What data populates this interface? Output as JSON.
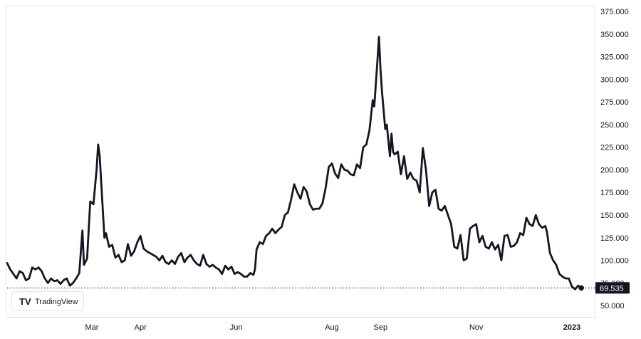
{
  "chart_data": {
    "type": "line",
    "title": "",
    "xlabel": "",
    "ylabel": "",
    "ylim": [
      37.5,
      375
    ],
    "y_ticks": [
      "375.000",
      "350.000",
      "325.000",
      "300.000",
      "275.000",
      "250.000",
      "225.000",
      "200.000",
      "175.000",
      "150.000",
      "125.000",
      "100.000",
      "75.000",
      "50.000"
    ],
    "x_tick_labels": [
      {
        "label": "Mar",
        "date": "2022-03-01"
      },
      {
        "label": "Apr",
        "date": "2022-04-01"
      },
      {
        "label": "Jun",
        "date": "2022-06-01"
      },
      {
        "label": "Aug",
        "date": "2022-08-01"
      },
      {
        "label": "Sep",
        "date": "2022-09-01"
      },
      {
        "label": "Nov",
        "date": "2022-11-01"
      },
      {
        "label": "2023",
        "date": "2023-01-01"
      }
    ],
    "grid": false,
    "last_price_label": "69.535",
    "last_value": 69.535,
    "series": [
      {
        "color": "#131722",
        "points": [
          [
            "2022-01-06",
            97
          ],
          [
            "2022-01-08",
            90
          ],
          [
            "2022-01-10",
            85
          ],
          [
            "2022-01-12",
            80
          ],
          [
            "2022-01-14",
            88
          ],
          [
            "2022-01-16",
            86
          ],
          [
            "2022-01-18",
            78
          ],
          [
            "2022-01-20",
            80
          ],
          [
            "2022-01-22",
            92
          ],
          [
            "2022-01-24",
            90
          ],
          [
            "2022-01-26",
            92
          ],
          [
            "2022-01-28",
            88
          ],
          [
            "2022-01-30",
            80
          ],
          [
            "2022-02-01",
            75
          ],
          [
            "2022-02-03",
            80
          ],
          [
            "2022-02-05",
            77
          ],
          [
            "2022-02-07",
            78
          ],
          [
            "2022-02-09",
            74
          ],
          [
            "2022-02-11",
            78
          ],
          [
            "2022-02-13",
            80
          ],
          [
            "2022-02-15",
            72
          ],
          [
            "2022-02-17",
            75
          ],
          [
            "2022-02-19",
            80
          ],
          [
            "2022-02-21",
            86
          ],
          [
            "2022-02-23",
            133
          ],
          [
            "2022-02-24",
            95
          ],
          [
            "2022-02-26",
            102
          ],
          [
            "2022-02-28",
            165
          ],
          [
            "2022-03-02",
            162
          ],
          [
            "2022-03-04",
            200
          ],
          [
            "2022-03-05",
            228
          ],
          [
            "2022-03-06",
            215
          ],
          [
            "2022-03-08",
            155
          ],
          [
            "2022-03-09",
            125
          ],
          [
            "2022-03-10",
            130
          ],
          [
            "2022-03-12",
            115
          ],
          [
            "2022-03-14",
            117
          ],
          [
            "2022-03-16",
            103
          ],
          [
            "2022-03-18",
            106
          ],
          [
            "2022-03-20",
            98
          ],
          [
            "2022-03-22",
            100
          ],
          [
            "2022-03-24",
            118
          ],
          [
            "2022-03-26",
            105
          ],
          [
            "2022-03-28",
            110
          ],
          [
            "2022-03-30",
            120
          ],
          [
            "2022-04-01",
            127
          ],
          [
            "2022-04-03",
            113
          ],
          [
            "2022-04-05",
            110
          ],
          [
            "2022-04-07",
            108
          ],
          [
            "2022-04-09",
            106
          ],
          [
            "2022-04-11",
            104
          ],
          [
            "2022-04-13",
            100
          ],
          [
            "2022-04-15",
            105
          ],
          [
            "2022-04-17",
            98
          ],
          [
            "2022-04-19",
            96
          ],
          [
            "2022-04-21",
            100
          ],
          [
            "2022-04-23",
            96
          ],
          [
            "2022-04-25",
            104
          ],
          [
            "2022-04-27",
            108
          ],
          [
            "2022-04-29",
            98
          ],
          [
            "2022-05-01",
            103
          ],
          [
            "2022-05-03",
            106
          ],
          [
            "2022-05-05",
            100
          ],
          [
            "2022-05-07",
            96
          ],
          [
            "2022-05-09",
            94
          ],
          [
            "2022-05-11",
            106
          ],
          [
            "2022-05-13",
            96
          ],
          [
            "2022-05-15",
            93
          ],
          [
            "2022-05-17",
            95
          ],
          [
            "2022-05-19",
            92
          ],
          [
            "2022-05-21",
            90
          ],
          [
            "2022-05-23",
            85
          ],
          [
            "2022-05-25",
            94
          ],
          [
            "2022-05-27",
            90
          ],
          [
            "2022-05-29",
            93
          ],
          [
            "2022-05-31",
            85
          ],
          [
            "2022-06-02",
            87
          ],
          [
            "2022-06-04",
            85
          ],
          [
            "2022-06-06",
            82
          ],
          [
            "2022-06-08",
            82
          ],
          [
            "2022-06-10",
            86
          ],
          [
            "2022-06-12",
            84
          ],
          [
            "2022-06-13",
            90
          ],
          [
            "2022-06-14",
            112
          ],
          [
            "2022-06-16",
            120
          ],
          [
            "2022-06-18",
            118
          ],
          [
            "2022-06-20",
            127
          ],
          [
            "2022-06-22",
            130
          ],
          [
            "2022-06-24",
            135
          ],
          [
            "2022-06-26",
            130
          ],
          [
            "2022-06-28",
            134
          ],
          [
            "2022-06-30",
            137
          ],
          [
            "2022-07-02",
            150
          ],
          [
            "2022-07-04",
            153
          ],
          [
            "2022-07-06",
            167
          ],
          [
            "2022-07-08",
            184
          ],
          [
            "2022-07-10",
            175
          ],
          [
            "2022-07-12",
            168
          ],
          [
            "2022-07-14",
            181
          ],
          [
            "2022-07-16",
            176
          ],
          [
            "2022-07-18",
            162
          ],
          [
            "2022-07-20",
            156
          ],
          [
            "2022-07-22",
            157
          ],
          [
            "2022-07-24",
            157
          ],
          [
            "2022-07-26",
            163
          ],
          [
            "2022-07-28",
            180
          ],
          [
            "2022-07-30",
            203
          ],
          [
            "2022-08-01",
            207
          ],
          [
            "2022-08-03",
            196
          ],
          [
            "2022-08-05",
            191
          ],
          [
            "2022-08-07",
            206
          ],
          [
            "2022-08-09",
            200
          ],
          [
            "2022-08-11",
            199
          ],
          [
            "2022-08-13",
            195
          ],
          [
            "2022-08-15",
            194
          ],
          [
            "2022-08-17",
            206
          ],
          [
            "2022-08-19",
            202
          ],
          [
            "2022-08-21",
            225
          ],
          [
            "2022-08-23",
            228
          ],
          [
            "2022-08-25",
            244
          ],
          [
            "2022-08-27",
            277
          ],
          [
            "2022-08-28",
            270
          ],
          [
            "2022-08-30",
            320
          ],
          [
            "2022-08-31",
            347
          ],
          [
            "2022-09-01",
            310
          ],
          [
            "2022-09-02",
            285
          ],
          [
            "2022-09-04",
            245
          ],
          [
            "2022-09-05",
            250
          ],
          [
            "2022-09-06",
            232
          ],
          [
            "2022-09-07",
            215
          ],
          [
            "2022-09-08",
            240
          ],
          [
            "2022-09-09",
            220
          ],
          [
            "2022-09-10",
            217
          ],
          [
            "2022-09-12",
            220
          ],
          [
            "2022-09-14",
            195
          ],
          [
            "2022-09-16",
            215
          ],
          [
            "2022-09-18",
            190
          ],
          [
            "2022-09-20",
            197
          ],
          [
            "2022-09-22",
            190
          ],
          [
            "2022-09-24",
            188
          ],
          [
            "2022-09-26",
            175
          ],
          [
            "2022-09-28",
            224
          ],
          [
            "2022-09-30",
            200
          ],
          [
            "2022-10-02",
            160
          ],
          [
            "2022-10-04",
            175
          ],
          [
            "2022-10-06",
            178
          ],
          [
            "2022-10-08",
            157
          ],
          [
            "2022-10-10",
            155
          ],
          [
            "2022-10-12",
            160
          ],
          [
            "2022-10-14",
            150
          ],
          [
            "2022-10-16",
            140
          ],
          [
            "2022-10-18",
            115
          ],
          [
            "2022-10-20",
            113
          ],
          [
            "2022-10-22",
            128
          ],
          [
            "2022-10-24",
            100
          ],
          [
            "2022-10-26",
            102
          ],
          [
            "2022-10-28",
            135
          ],
          [
            "2022-10-30",
            138
          ],
          [
            "2022-11-01",
            140
          ],
          [
            "2022-11-03",
            120
          ],
          [
            "2022-11-05",
            127
          ],
          [
            "2022-11-07",
            115
          ],
          [
            "2022-11-09",
            113
          ],
          [
            "2022-11-11",
            120
          ],
          [
            "2022-11-13",
            112
          ],
          [
            "2022-11-15",
            117
          ],
          [
            "2022-11-17",
            100
          ],
          [
            "2022-11-19",
            127
          ],
          [
            "2022-11-21",
            128
          ],
          [
            "2022-11-23",
            115
          ],
          [
            "2022-11-25",
            116
          ],
          [
            "2022-11-27",
            120
          ],
          [
            "2022-11-29",
            130
          ],
          [
            "2022-12-01",
            128
          ],
          [
            "2022-12-03",
            147
          ],
          [
            "2022-12-05",
            140
          ],
          [
            "2022-12-07",
            138
          ],
          [
            "2022-12-09",
            150
          ],
          [
            "2022-12-11",
            140
          ],
          [
            "2022-12-13",
            136
          ],
          [
            "2022-12-15",
            138
          ],
          [
            "2022-12-16",
            132
          ],
          [
            "2022-12-18",
            108
          ],
          [
            "2022-12-20",
            100
          ],
          [
            "2022-12-22",
            95
          ],
          [
            "2022-12-24",
            85
          ],
          [
            "2022-12-26",
            82
          ],
          [
            "2022-12-28",
            80
          ],
          [
            "2022-12-30",
            80
          ],
          [
            "2023-01-01",
            71
          ],
          [
            "2023-01-03",
            68
          ],
          [
            "2023-01-05",
            72
          ],
          [
            "2023-01-07",
            69.535
          ]
        ]
      }
    ]
  },
  "branding": {
    "logo_text": "TradingView",
    "logo_mark": "TV",
    "logo_icon": "tradingview-logo-icon"
  },
  "colors": {
    "line": "#131722",
    "price_tag_bg": "#131722",
    "price_tag_text": "#ffffff",
    "axis_text": "#131722",
    "panel_border": "#e0e3eb"
  }
}
